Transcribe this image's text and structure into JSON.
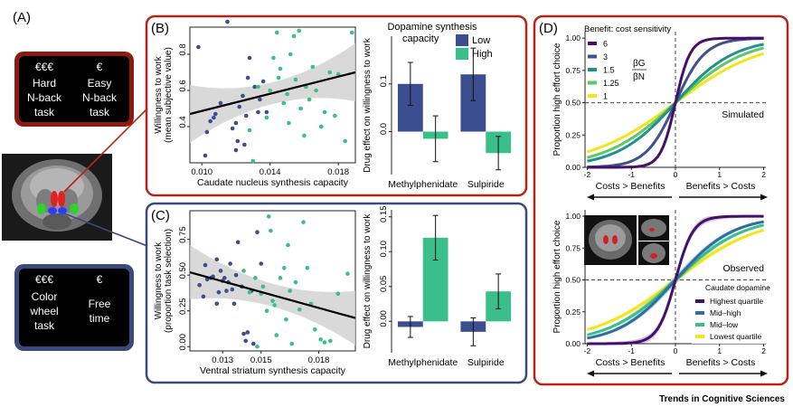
{
  "colors": {
    "low": "#3c4e8f",
    "high": "#3bbf8a",
    "red": "#b72416",
    "navy": "#3b4a7a",
    "shade": "#cfcfcf"
  },
  "panel_a": {
    "label": "(A)",
    "hard_box": {
      "money": "€€€",
      "l1": "Hard",
      "l2": "N-back",
      "l3": "task"
    },
    "easy_box": {
      "money": "€",
      "l1": "Easy",
      "l2": "N-back",
      "l3": "task"
    },
    "color_box": {
      "money": "€€€",
      "l1": "Color",
      "l2": "wheel",
      "l3": "task"
    },
    "free_box": {
      "money": "€",
      "l1": "Free",
      "l2": "time"
    }
  },
  "panel_b": {
    "label": "(B)",
    "scatter": {
      "type": "scatter",
      "xlabel": "Caudate nucleus synthesis capacity",
      "ylabel1": "Willingness to work",
      "ylabel2": "(mean subjective value)",
      "xticks": [
        "0.010",
        "0.014",
        "0.018"
      ],
      "yticks": [
        "0.4",
        "0.6",
        "0.8"
      ],
      "xlim": [
        0.0093,
        0.019
      ],
      "ylim": [
        0.2,
        0.95
      ],
      "fit": {
        "x0": 0.0093,
        "y0": 0.47,
        "x1": 0.019,
        "y1": 0.7
      },
      "low": [
        [
          0.0102,
          0.24
        ],
        [
          0.0103,
          0.37
        ],
        [
          0.0105,
          0.43
        ],
        [
          0.0107,
          0.45
        ],
        [
          0.0108,
          0.47
        ],
        [
          0.0111,
          0.53
        ],
        [
          0.0115,
          0.98
        ],
        [
          0.0118,
          0.39
        ],
        [
          0.012,
          0.42
        ],
        [
          0.0121,
          0.32
        ],
        [
          0.0122,
          0.51
        ],
        [
          0.0124,
          0.57
        ],
        [
          0.0125,
          0.3
        ],
        [
          0.0127,
          0.67
        ],
        [
          0.0128,
          0.78
        ],
        [
          0.0131,
          0.62
        ],
        [
          0.0133,
          0.48
        ],
        [
          0.0134,
          0.55
        ],
        [
          0.0136,
          0.65
        ],
        [
          0.0138,
          0.48
        ],
        [
          0.012,
          0.27
        ],
        [
          0.0126,
          0.46
        ],
        [
          0.0098,
          0.84
        ]
      ],
      "high": [
        [
          0.0128,
          0.38
        ],
        [
          0.013,
          0.21
        ],
        [
          0.0133,
          0.62
        ],
        [
          0.0138,
          0.45
        ],
        [
          0.014,
          0.6
        ],
        [
          0.0142,
          0.78
        ],
        [
          0.0144,
          0.92
        ],
        [
          0.0145,
          0.67
        ],
        [
          0.0146,
          0.72
        ],
        [
          0.0148,
          0.53
        ],
        [
          0.015,
          0.58
        ],
        [
          0.0151,
          0.42
        ],
        [
          0.0152,
          0.8
        ],
        [
          0.0154,
          0.9
        ],
        [
          0.0155,
          0.66
        ],
        [
          0.0157,
          0.93
        ],
        [
          0.0158,
          0.5
        ],
        [
          0.016,
          0.35
        ],
        [
          0.0161,
          0.62
        ],
        [
          0.0163,
          0.55
        ],
        [
          0.0165,
          0.73
        ],
        [
          0.0167,
          0.6
        ],
        [
          0.017,
          0.4
        ],
        [
          0.0172,
          0.48
        ],
        [
          0.0175,
          0.7
        ],
        [
          0.0178,
          0.46
        ],
        [
          0.018,
          0.69
        ],
        [
          0.0184,
          0.32
        ],
        [
          0.0188,
          0.92
        ]
      ]
    },
    "bars": {
      "type": "bar",
      "legend_title1": "Dopamine synthesis",
      "legend_title2": "capacity",
      "legend_low": "Low",
      "legend_high": "High",
      "ylabel": "Drug effect on willingness to work",
      "categories": [
        "Methylphenidate",
        "Sulpiride"
      ],
      "yticks": [
        "0.0",
        "0.1"
      ],
      "ylim": [
        -0.09,
        0.2
      ],
      "series": [
        {
          "name": "Low",
          "values": [
            0.1,
            0.12
          ],
          "err": [
            0.045,
            0.055
          ]
        },
        {
          "name": "High",
          "values": [
            -0.015,
            -0.045
          ],
          "err": [
            0.048,
            0.035
          ]
        }
      ]
    }
  },
  "panel_c": {
    "label": "(C)",
    "scatter": {
      "type": "scatter",
      "xlabel": "Ventral striatum synthesis capacity",
      "ylabel1": "Willingness to work",
      "ylabel2": "(proportion task selection)",
      "xticks": [
        "0.013",
        "0.015",
        "0.018"
      ],
      "yticks": [
        "0.00",
        "0.25",
        "0.50",
        "0.75"
      ],
      "xlim": [
        0.0113,
        0.0199
      ],
      "ylim": [
        -0.03,
        0.95
      ],
      "fit": {
        "x0": 0.0113,
        "y0": 0.52,
        "x1": 0.0199,
        "y1": 0.2
      },
      "low": [
        [
          0.0118,
          0.43
        ],
        [
          0.012,
          0.35
        ],
        [
          0.0121,
          0.57
        ],
        [
          0.0122,
          0.47
        ],
        [
          0.0124,
          0.48
        ],
        [
          0.0125,
          0.49
        ],
        [
          0.0127,
          0.61
        ],
        [
          0.0127,
          0.3
        ],
        [
          0.0129,
          0.53
        ],
        [
          0.013,
          0.46
        ],
        [
          0.0131,
          0.48
        ],
        [
          0.0132,
          0.39
        ],
        [
          0.0133,
          0.45
        ],
        [
          0.0134,
          0.58
        ],
        [
          0.0135,
          0.4
        ],
        [
          0.0136,
          0.3
        ],
        [
          0.0137,
          0.5
        ],
        [
          0.0138,
          0.73
        ],
        [
          0.014,
          0.42
        ],
        [
          0.0141,
          0.09
        ],
        [
          0.0142,
          0.04
        ],
        [
          0.0143,
          0.1
        ],
        [
          0.0145,
          0.39
        ],
        [
          0.0146,
          0.02
        ],
        [
          0.0148,
          0.8
        ],
        [
          0.015,
          0.58
        ],
        [
          0.0128,
          0.38
        ]
      ],
      "high": [
        [
          0.0141,
          0.53
        ],
        [
          0.0144,
          0.38
        ],
        [
          0.0147,
          0.48
        ],
        [
          0.0148,
          0.0
        ],
        [
          0.015,
          0.37
        ],
        [
          0.0151,
          0.42
        ],
        [
          0.0153,
          0.25
        ],
        [
          0.0154,
          0.91
        ],
        [
          0.0155,
          0.81
        ],
        [
          0.0156,
          0.32
        ],
        [
          0.0157,
          0.29
        ],
        [
          0.0158,
          0.08
        ],
        [
          0.016,
          0.48
        ],
        [
          0.0162,
          0.55
        ],
        [
          0.0163,
          0.19
        ],
        [
          0.0164,
          0.71
        ],
        [
          0.0165,
          0.39
        ],
        [
          0.0166,
          0.02
        ],
        [
          0.0168,
          0.45
        ],
        [
          0.017,
          0.26
        ],
        [
          0.0172,
          0.87
        ],
        [
          0.0174,
          0.55
        ],
        [
          0.0176,
          0.3
        ],
        [
          0.0178,
          0.12
        ],
        [
          0.0181,
          0.05
        ],
        [
          0.0183,
          0.03
        ],
        [
          0.0186,
          0.04
        ],
        [
          0.019,
          0.37
        ],
        [
          0.0195,
          0.51
        ]
      ]
    },
    "bars": {
      "type": "bar",
      "ylabel": "Drug effect on willingness to work",
      "categories": [
        "Methylphenidate",
        "Sulpiride"
      ],
      "yticks": [
        "0.00",
        "0.05",
        "0.10",
        "0.15"
      ],
      "ylim": [
        -0.045,
        0.16
      ],
      "series": [
        {
          "name": "Low",
          "values": [
            -0.008,
            -0.015
          ],
          "err": [
            0.015,
            0.02
          ]
        },
        {
          "name": "High",
          "values": [
            0.12,
            0.043
          ],
          "err": [
            0.032,
            0.025
          ]
        }
      ]
    }
  },
  "panel_d": {
    "label": "(D)",
    "ylabel": "Proportion high effort choice",
    "yticks": [
      "0.00",
      "0.25",
      "0.50",
      "0.75",
      "1.00"
    ],
    "xticks": [
      "-2",
      "-1",
      "0",
      "1",
      "2"
    ],
    "xlim": [
      -2.05,
      2.05
    ],
    "ylim": [
      0,
      1.05
    ],
    "costs_label": "Costs > Benefits",
    "benefits_label": "Benefits > Costs",
    "top": {
      "type": "line",
      "legend_title": "Benefit: cost sensitivity",
      "ratio_num": "βG",
      "ratio_den": "βN",
      "annotation": "Simulated",
      "series": [
        {
          "name": "6",
          "k": 6,
          "color": "#45106a"
        },
        {
          "name": "3",
          "k": 3,
          "color": "#3b528b"
        },
        {
          "name": "1.5",
          "k": 1.5,
          "color": "#21918c"
        },
        {
          "name": "1.25",
          "k": 1.25,
          "color": "#5ec962"
        },
        {
          "name": "1",
          "k": 1,
          "color": "#f3e41b"
        }
      ]
    },
    "bottom": {
      "type": "line",
      "legend_title": "Caudate dopamine",
      "annotation": "Observed",
      "series": [
        {
          "name": "Highest quartile",
          "k": 5,
          "color": "#45106a"
        },
        {
          "name": "Mid–high",
          "k": 1.55,
          "color": "#2d6f9e"
        },
        {
          "name": "Mid–low",
          "k": 1.3,
          "color": "#3bbf8a"
        },
        {
          "name": "Lowest quartile",
          "k": 1.05,
          "color": "#f3e41b"
        }
      ]
    }
  },
  "footer": "Trends in Cognitive Sciences"
}
